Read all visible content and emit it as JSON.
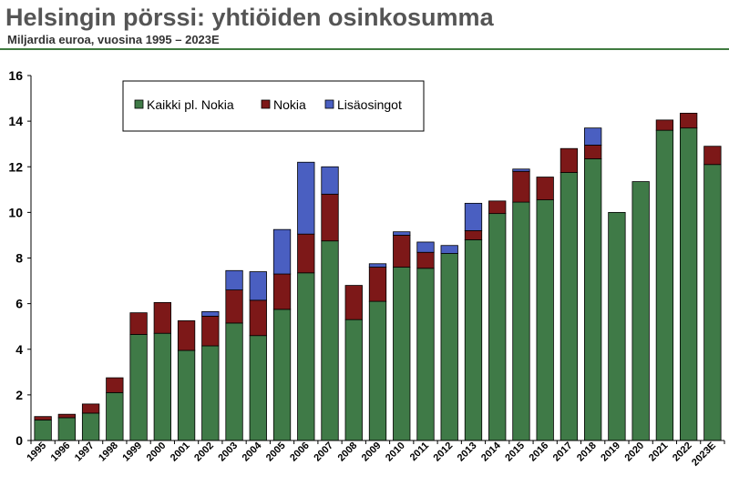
{
  "chart_data": {
    "type": "bar",
    "stacked": true,
    "title": "Helsingin pörssi: yhtiöiden osinkosumma",
    "subtitle": "Miljardia euroa, vuosina 1995 – 2023E",
    "xlabel": "",
    "ylabel": "",
    "ylim": [
      0,
      16
    ],
    "yticks": [
      0,
      2,
      4,
      6,
      8,
      10,
      12,
      14,
      16
    ],
    "grid": false,
    "legend_position": "top-left",
    "categories": [
      "1995",
      "1996",
      "1997",
      "1998",
      "1999",
      "2000",
      "2001",
      "2002",
      "2003",
      "2004",
      "2005",
      "2006",
      "2007",
      "2008",
      "2009",
      "2010",
      "2011",
      "2012",
      "2013",
      "2014",
      "2015",
      "2016",
      "2017",
      "2018",
      "2019",
      "2020",
      "2021",
      "2022",
      "2023E"
    ],
    "series": [
      {
        "name": "Kaikki pl. Nokia",
        "color": "#3f7a47",
        "values": [
          0.9,
          1.0,
          1.2,
          2.1,
          4.65,
          4.7,
          3.95,
          4.15,
          5.15,
          4.6,
          5.75,
          7.35,
          8.75,
          5.3,
          6.1,
          7.6,
          7.55,
          8.2,
          8.8,
          9.95,
          10.45,
          10.55,
          11.75,
          12.35,
          10.0,
          11.35,
          13.6,
          13.7,
          12.1
        ]
      },
      {
        "name": "Nokia",
        "color": "#7d1818",
        "values": [
          0.15,
          0.15,
          0.4,
          0.65,
          0.95,
          1.35,
          1.3,
          1.3,
          1.45,
          1.55,
          1.55,
          1.7,
          2.05,
          1.5,
          1.5,
          1.4,
          0.7,
          0.0,
          0.4,
          0.55,
          1.35,
          1.0,
          1.05,
          0.6,
          0.0,
          0.0,
          0.45,
          0.65,
          0.8
        ]
      },
      {
        "name": "Lisäosingot",
        "color": "#4a5fc1",
        "values": [
          0.0,
          0.0,
          0.0,
          0.0,
          0.0,
          0.0,
          0.0,
          0.2,
          0.85,
          1.25,
          1.95,
          3.15,
          1.2,
          0.0,
          0.15,
          0.15,
          0.45,
          0.35,
          1.2,
          0.0,
          0.1,
          0.0,
          0.0,
          0.75,
          0.0,
          0.0,
          0.0,
          0.0,
          0.0
        ]
      }
    ]
  }
}
